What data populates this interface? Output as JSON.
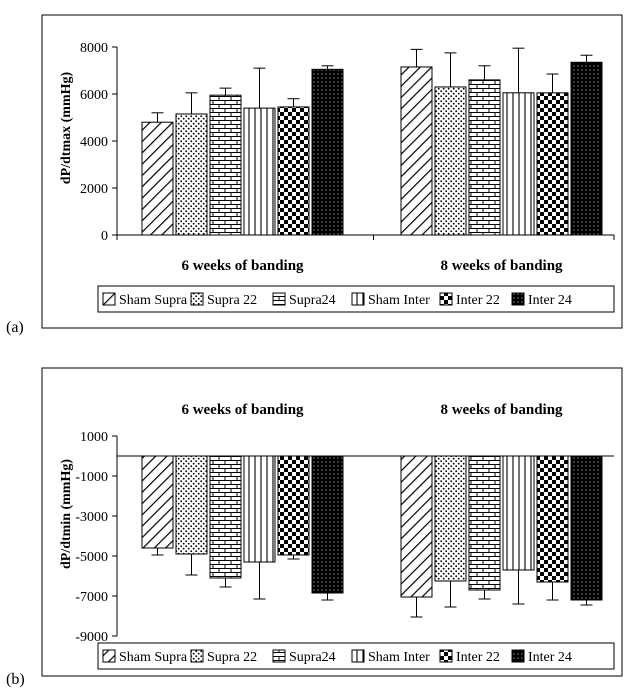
{
  "chart_data": [
    {
      "panel": "(a)",
      "type": "bar",
      "ylabel": "dP/dtmax (mmHg)",
      "ylim": [
        0,
        8000
      ],
      "yticks": [
        0,
        2000,
        4000,
        6000,
        8000
      ],
      "tick_labels": [
        "0",
        "2000",
        "4000",
        "6000",
        "8000"
      ],
      "categories": [
        "6 weeks of banding",
        "8 weeks of banding"
      ],
      "category_label_position": "bottom",
      "legend_position": "bottom",
      "grid": false,
      "series": [
        {
          "name": "Sham Supra",
          "pattern": "diagonal",
          "values": [
            4800,
            7150
          ],
          "errors": [
            400,
            750
          ]
        },
        {
          "name": "Supra 22",
          "pattern": "dots",
          "values": [
            5150,
            6300
          ],
          "errors": [
            900,
            1450
          ]
        },
        {
          "name": "Supra24",
          "pattern": "brick",
          "values": [
            5950,
            6600
          ],
          "errors": [
            300,
            600
          ]
        },
        {
          "name": "Sham Inter",
          "pattern": "vertical",
          "values": [
            5400,
            6050
          ],
          "errors": [
            1700,
            1900
          ]
        },
        {
          "name": "Inter 22",
          "pattern": "checker",
          "values": [
            5450,
            6050
          ],
          "errors": [
            350,
            800
          ]
        },
        {
          "name": "Inter 24",
          "pattern": "dark",
          "values": [
            7050,
            7350
          ],
          "errors": [
            150,
            300
          ]
        }
      ]
    },
    {
      "panel": "(b)",
      "type": "bar",
      "ylabel": "dP/dtmin (mmHg)",
      "ylim": [
        -9000,
        1000
      ],
      "yticks": [
        1000,
        -1000,
        -3000,
        -5000,
        -7000,
        -9000
      ],
      "tick_labels": [
        "1000",
        "-1000",
        "-3000",
        "-5000",
        "-7000",
        "-9000"
      ],
      "categories": [
        "6 weeks of banding",
        "8 weeks of banding"
      ],
      "category_label_position": "top",
      "legend_position": "bottom",
      "grid": false,
      "series": [
        {
          "name": "Sham Supra",
          "pattern": "diagonal",
          "values": [
            -4600,
            -7050
          ],
          "errors": [
            350,
            1000
          ]
        },
        {
          "name": "Supra 22",
          "pattern": "dots",
          "values": [
            -4900,
            -6250
          ],
          "errors": [
            1050,
            1300
          ]
        },
        {
          "name": "Supra24",
          "pattern": "brick",
          "values": [
            -6100,
            -6700
          ],
          "errors": [
            450,
            450
          ]
        },
        {
          "name": "Sham Inter",
          "pattern": "vertical",
          "values": [
            -5300,
            -5700
          ],
          "errors": [
            1850,
            1700
          ]
        },
        {
          "name": "Inter 22",
          "pattern": "checker",
          "values": [
            -4950,
            -6300
          ],
          "errors": [
            200,
            900
          ]
        },
        {
          "name": "Inter 24",
          "pattern": "dark",
          "values": [
            -6850,
            -7200
          ],
          "errors": [
            350,
            250
          ]
        }
      ]
    }
  ]
}
